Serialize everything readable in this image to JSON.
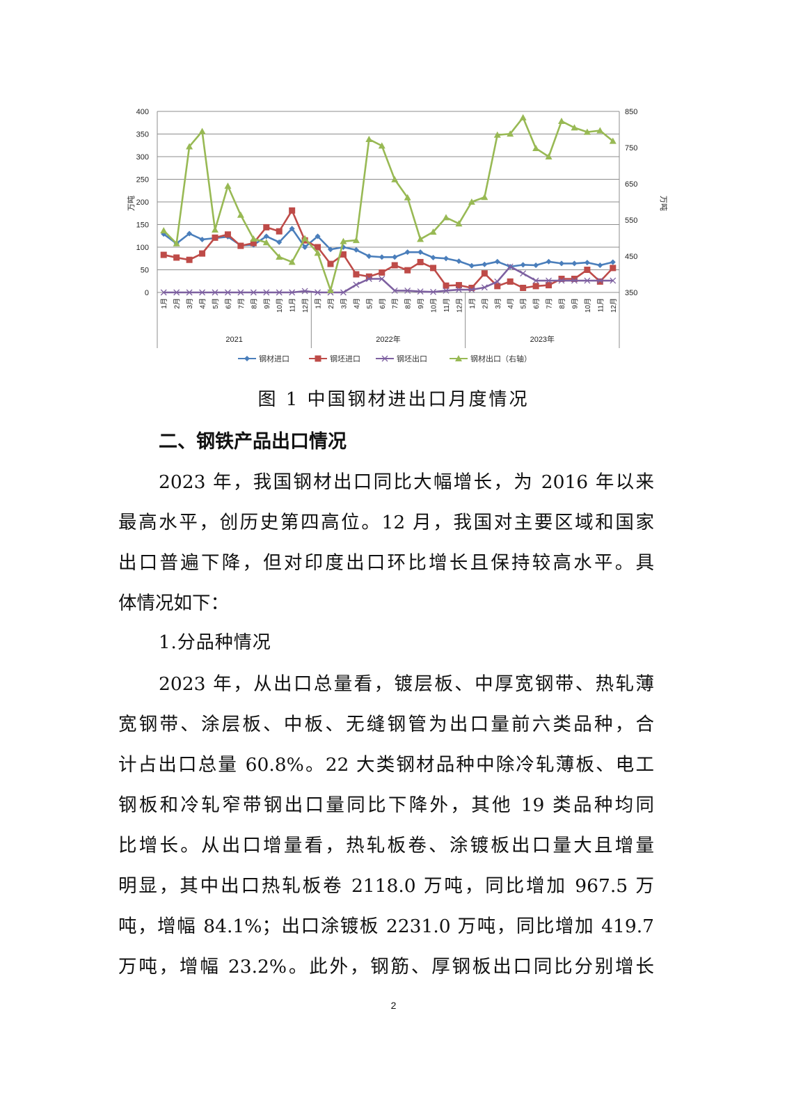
{
  "chart_data": {
    "type": "line",
    "ylabel": "万吨",
    "y2label": "万吨",
    "ylim": [
      0,
      400
    ],
    "y2lim": [
      350,
      850
    ],
    "yticks": [
      0,
      50,
      100,
      150,
      200,
      250,
      300,
      350,
      400
    ],
    "y2ticks": [
      350,
      450,
      550,
      650,
      750,
      850
    ],
    "grid": true,
    "legend_position": "bottom",
    "year_groups": [
      "2021",
      "2022年",
      "2023年"
    ],
    "months": [
      "1月",
      "2月",
      "3月",
      "4月",
      "5月",
      "6月",
      "7月",
      "8月",
      "9月",
      "10月",
      "11月",
      "12月"
    ],
    "series": [
      {
        "name": "钢材进口",
        "axis": "left",
        "color": "#4a7ebb",
        "marker": "diamond",
        "values": [
          129,
          108,
          130,
          117,
          120,
          123,
          104,
          105,
          124,
          111,
          141,
          100,
          124,
          95,
          100,
          94,
          80,
          78,
          78,
          89,
          89,
          77,
          75,
          69,
          59,
          62,
          68,
          57,
          61,
          60,
          68,
          64,
          64,
          66,
          60,
          67
        ]
      },
      {
        "name": "钢坯进口",
        "axis": "left",
        "color": "#be4b48",
        "marker": "square",
        "values": [
          83,
          77,
          72,
          86,
          121,
          128,
          103,
          109,
          144,
          135,
          181,
          115,
          100,
          63,
          84,
          40,
          35,
          44,
          60,
          49,
          67,
          54,
          15,
          16,
          10,
          42,
          14,
          24,
          10,
          14,
          16,
          30,
          30,
          50,
          24,
          54
        ]
      },
      {
        "name": "钢坯出口",
        "axis": "left",
        "color": "#7d60a0",
        "marker": "x",
        "values": [
          0,
          0,
          0,
          0,
          0,
          0,
          0,
          0,
          0,
          0,
          0,
          3,
          0,
          0,
          0,
          17,
          30,
          30,
          4,
          4,
          2,
          1,
          4,
          6,
          6,
          11,
          24,
          57,
          42,
          26,
          26,
          26,
          26,
          26,
          26,
          26
        ]
      },
      {
        "name": "钢材出口（右轴）",
        "axis": "right",
        "color": "#98b954",
        "marker": "triangle",
        "values": [
          521,
          485,
          753,
          795,
          523,
          644,
          564,
          498,
          488,
          448,
          434,
          499,
          459,
          356,
          491,
          494,
          773,
          755,
          662,
          612,
          497,
          517,
          557,
          540,
          600,
          613,
          785,
          788,
          833,
          748,
          725,
          823,
          805,
          793,
          797,
          768
        ]
      }
    ]
  },
  "caption": "图 1  中国钢材进出口月度情况",
  "section_heading": "二、钢铁产品出口情况",
  "para1": [
    "2023 年，我国钢材出口同比大幅增长，为 2016 年以来",
    "最高水平，创历史第四高位。12 月，我国对主要区域和国家",
    "出口普遍下降，但对印度出口环比增长且保持较高水平。具",
    "体情况如下："
  ],
  "subheading": "1.分品种情况",
  "para2": [
    "2023 年，从出口总量看，镀层板、中厚宽钢带、热轧薄",
    "宽钢带、涂层板、中板、无缝钢管为出口量前六类品种，合",
    "计占出口总量 60.8%。22 大类钢材品种中除冷轧薄板、电工",
    "钢板和冷轧窄带钢出口量同比下降外，其他 19 类品种均同",
    "比增长。从出口增量看，热轧板卷、涂镀板出口量大且增量",
    "明显，其中出口热轧板卷 2118.0 万吨，同比增加 967.5 万",
    "吨，增幅 84.1%；出口涂镀板 2231.0 万吨，同比增加 419.7",
    "万吨，增幅 23.2%。此外，钢筋、厚钢板出口同比分别增长"
  ],
  "page_number": "2"
}
